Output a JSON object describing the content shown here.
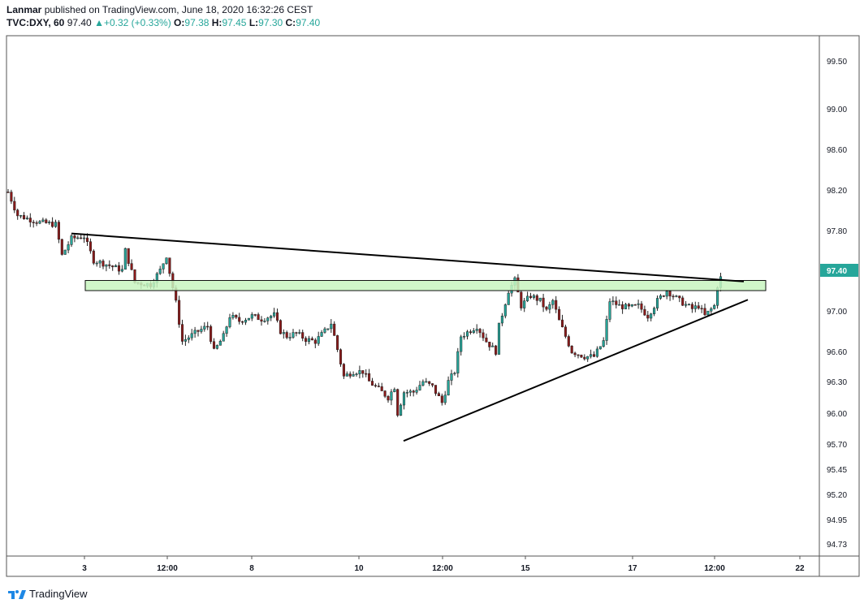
{
  "header": {
    "publisher": "Lanmar",
    "published_text": "published on TradingView.com, June 18, 2020 16:32:26 CEST",
    "symbol": "TVC:DXY, 60",
    "last": "97.40",
    "change_arrow": "▲",
    "change": "+0.32 (+0.33%)",
    "o_label": "O:",
    "o_value": "97.38",
    "h_label": "H:",
    "h_value": "97.45",
    "l_label": "L:",
    "l_value": "97.30",
    "c_label": "C:",
    "c_value": "97.40"
  },
  "footer": {
    "brand": "TradingView",
    "logo_icon": "tradingview-logo-icon"
  },
  "colors": {
    "up": "#26a69a",
    "down": "#8b1a1a",
    "zone_fill": "#c8f5c0",
    "zone_stroke": "#111111",
    "price_label_bg": "#26a69a"
  },
  "chart_data": {
    "type": "candlestick",
    "symbol": "TVC:DXY",
    "interval": "60",
    "y_ticks": [
      "99.50",
      "99.00",
      "98.60",
      "98.20",
      "97.80",
      "97.40",
      "97.00",
      "96.60",
      "96.30",
      "96.00",
      "95.70",
      "95.45",
      "95.20",
      "94.95",
      "94.73"
    ],
    "x_ticks": [
      "3",
      "12:00",
      "8",
      "10",
      "12:00",
      "15",
      "17",
      "12:00",
      "22"
    ],
    "last_price_label": "97.40",
    "resistance_zone": [
      97.2,
      97.3
    ],
    "descending_trendline": [
      [
        0,
        97.77
      ],
      [
        233,
        97.29
      ]
    ],
    "ascending_trendline": [
      [
        124,
        95.73
      ],
      [
        233,
        97.11
      ]
    ],
    "bars": 225
  }
}
